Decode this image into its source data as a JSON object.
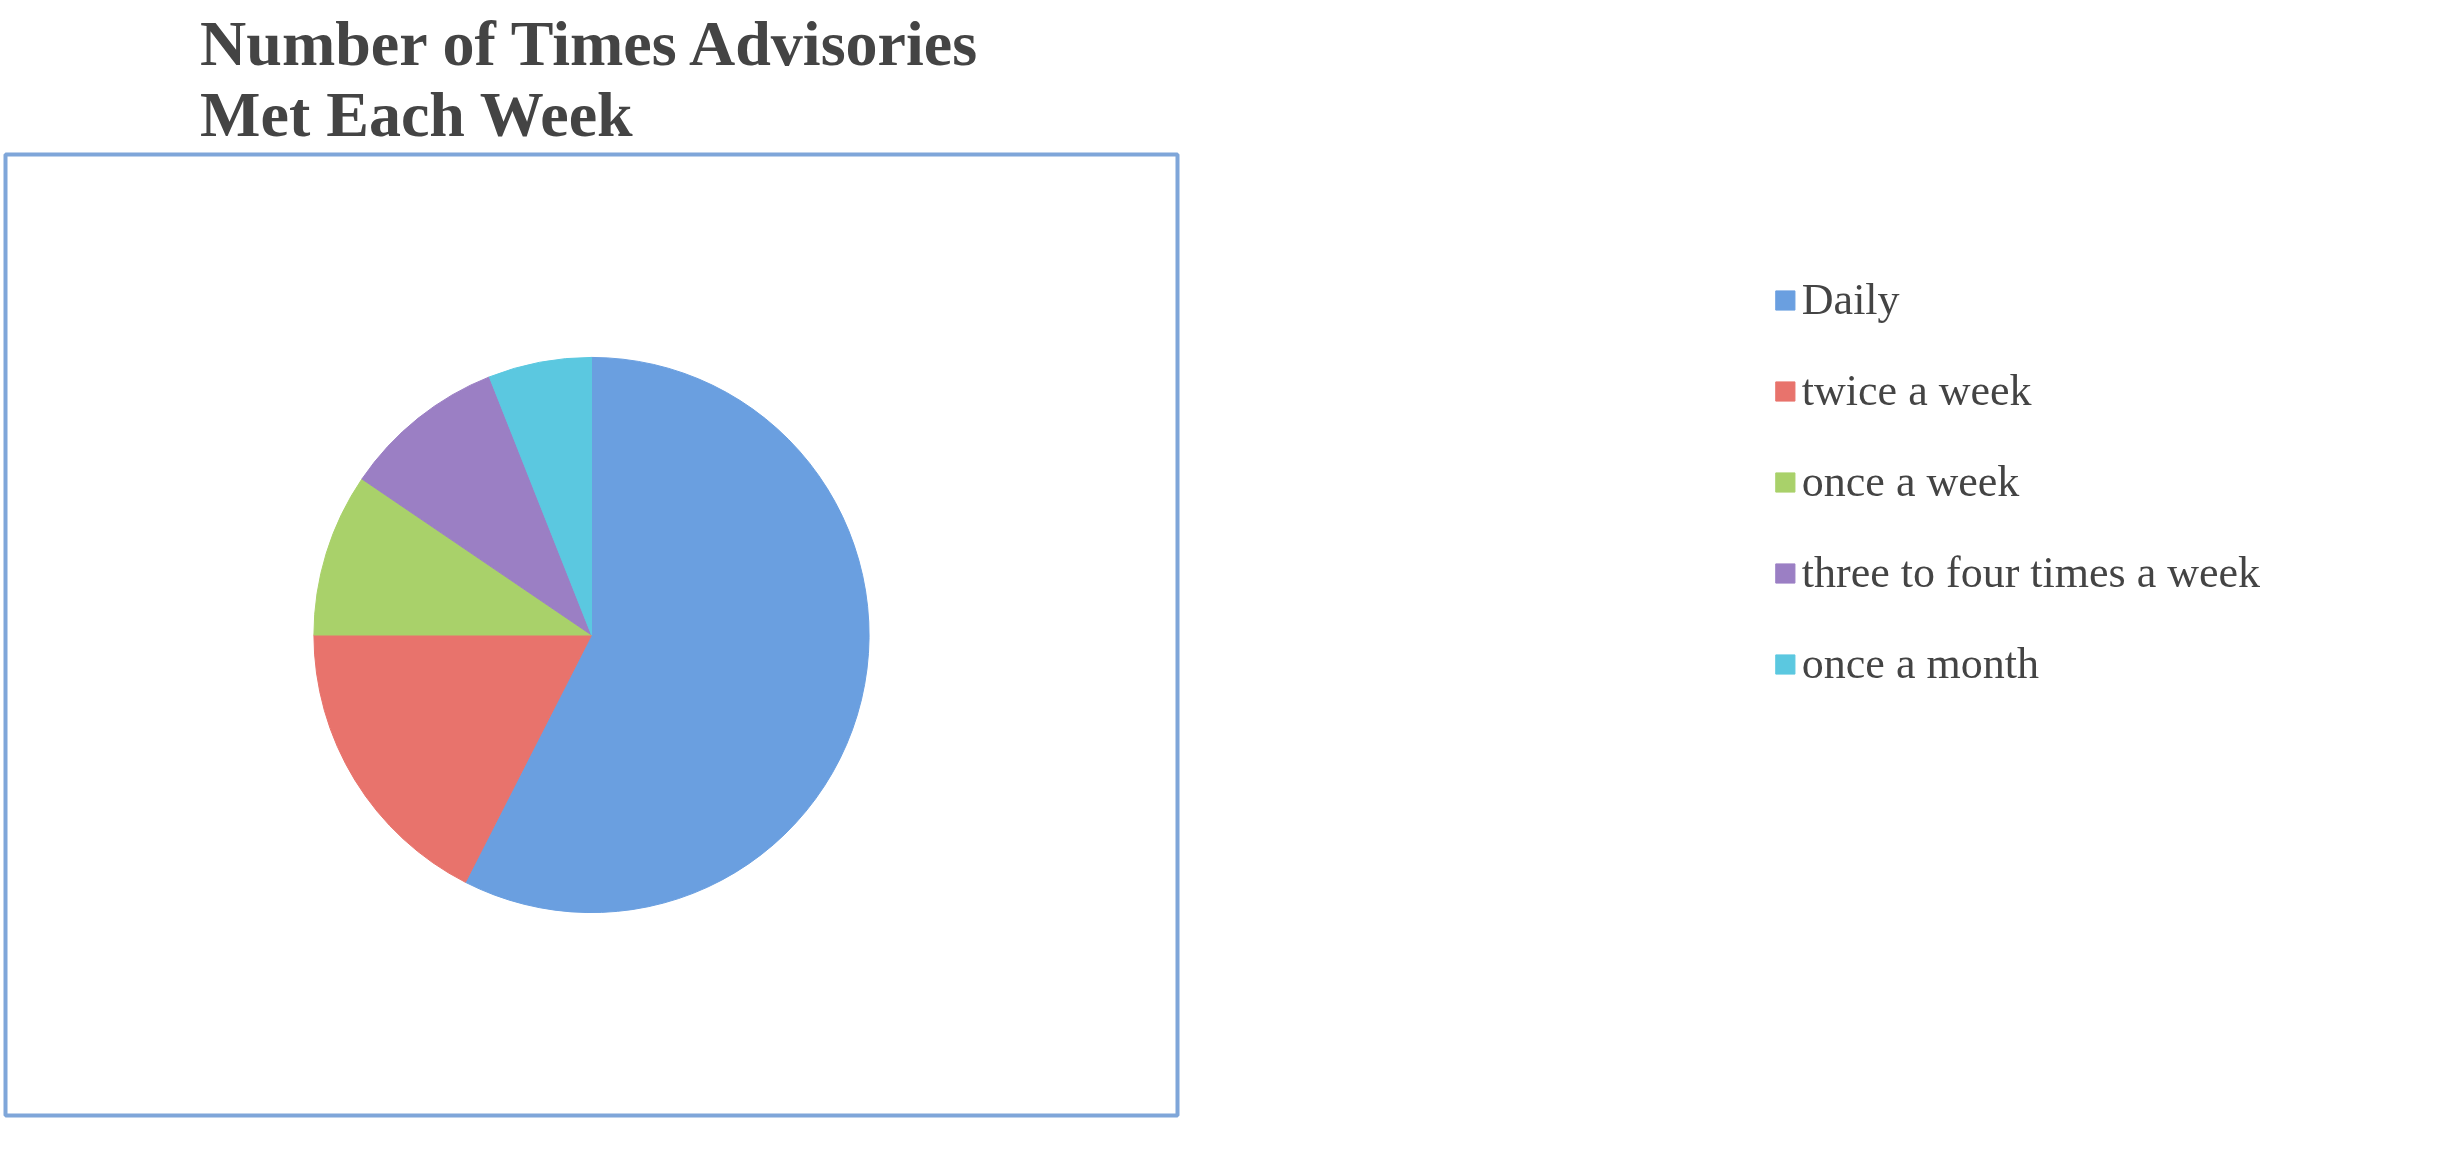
{
  "chart_data": {
    "type": "pie",
    "title": "Number of Times Advisories Met Each Week",
    "categories": [
      "Daily",
      "twice a week",
      "once a week",
      "three to four times a week",
      "once a month"
    ],
    "values": [
      57.5,
      17.5,
      9.5,
      9.5,
      6
    ],
    "colors": [
      "#6a9fe0",
      "#e8736c",
      "#a9d16a",
      "#9b7fc4",
      "#5bc8e0"
    ],
    "legend": "right"
  }
}
